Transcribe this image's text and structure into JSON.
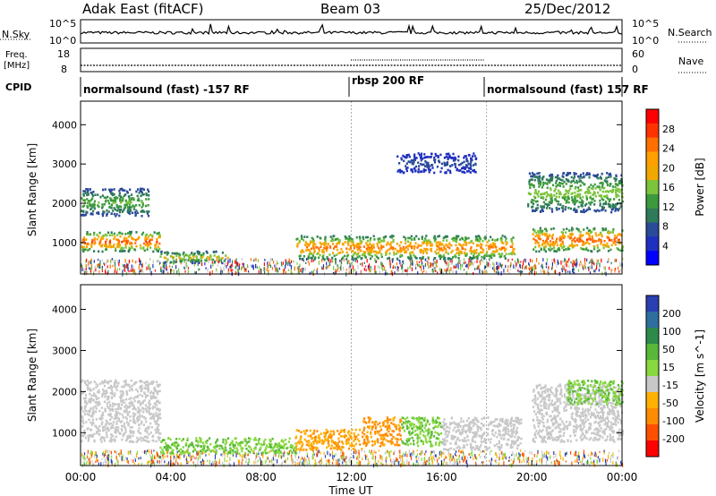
{
  "header": {
    "radar": "Adak East (fitACF)",
    "beam": "Beam 03",
    "date": "25/Dec/2012"
  },
  "strip_panels": {
    "nsky": {
      "left_label": "N.Sky",
      "right_label": "N.Search",
      "left_ticks": [
        "10^5",
        "10^0"
      ],
      "right_ticks": [
        "10^5",
        "10^0"
      ]
    },
    "freq": {
      "left_label_1": "Freq.",
      "left_label_2": "[MHz]",
      "right_label": "Nave",
      "left_ticks": [
        "18",
        "8"
      ],
      "right_ticks": [
        "60",
        "0"
      ]
    },
    "cpid": {
      "label": "CPID",
      "segments": [
        {
          "text": "normalsound (fast) -157 RF",
          "start_hour": 0,
          "end_hour": 12
        },
        {
          "text": "rbsp 200 RF",
          "start_hour": 12,
          "end_hour": 18
        },
        {
          "text": "normalsound (fast) 157 RF",
          "start_hour": 18,
          "end_hour": 24
        }
      ]
    }
  },
  "chart_data": [
    {
      "type": "heatmap",
      "panel": "power",
      "title": "",
      "xlabel": "",
      "ylabel": "Slant Range [km]",
      "xlim_hours": [
        0,
        24
      ],
      "ylim_km": [
        200,
        4600
      ],
      "yticks": [
        "1000",
        "2000",
        "3000",
        "4000"
      ],
      "colorbar": {
        "label": "Power [dB]",
        "tick_labels": [
          "28",
          "24",
          "20",
          "16",
          "12",
          "8",
          "4"
        ],
        "colors": [
          "#ff0000",
          "#ff3300",
          "#ff7000",
          "#ffa000",
          "#f0a800",
          "#7cc43c",
          "#3c9a3c",
          "#2f7a5a",
          "#2a4a9a",
          "#1f2fbf",
          "#0000ff"
        ]
      },
      "echo_bands": [
        {
          "start_hour": 0.0,
          "end_hour": 3.5,
          "range_low_km": 800,
          "range_high_km": 1300,
          "level_db": 26
        },
        {
          "start_hour": 3.5,
          "end_hour": 6.5,
          "range_low_km": 500,
          "range_high_km": 800,
          "level_db": 18
        },
        {
          "start_hour": 9.5,
          "end_hour": 19.2,
          "range_low_km": 600,
          "range_high_km": 1200,
          "level_db": 24
        },
        {
          "start_hour": 20.0,
          "end_hour": 24.0,
          "range_low_km": 800,
          "range_high_km": 1400,
          "level_db": 26
        },
        {
          "start_hour": 0.0,
          "end_hour": 3.0,
          "range_low_km": 1700,
          "range_high_km": 2400,
          "level_db": 14
        },
        {
          "start_hour": 19.8,
          "end_hour": 24.0,
          "range_low_km": 1800,
          "range_high_km": 2800,
          "level_db": 16
        },
        {
          "start_hour": 14.0,
          "end_hour": 17.5,
          "range_low_km": 2800,
          "range_high_km": 3300,
          "level_db": 6
        }
      ]
    },
    {
      "type": "heatmap",
      "panel": "velocity",
      "title": "",
      "xlabel": "Time UT",
      "ylabel": "Slant Range [km]",
      "xlim_hours": [
        0,
        24
      ],
      "ylim_km": [
        200,
        4600
      ],
      "yticks": [
        "1000",
        "2000",
        "3000",
        "4000"
      ],
      "xticks": [
        "00:00",
        "04:00",
        "08:00",
        "12:00",
        "16:00",
        "20:00",
        "00:00"
      ],
      "colorbar": {
        "label": "Velocity [m s^-1]",
        "tick_labels": [
          "200",
          "100",
          "50",
          "15",
          "-15",
          "-50",
          "-100",
          "-200"
        ],
        "colors": [
          "#2a3fb0",
          "#2f6fa0",
          "#2e8a4a",
          "#58b838",
          "#88d840",
          "#c8c8c8",
          "#ffb000",
          "#ff8c00",
          "#ff5000",
          "#ff0000"
        ]
      },
      "echo_bands": [
        {
          "start_hour": 0.0,
          "end_hour": 3.5,
          "range_low_km": 800,
          "range_high_km": 2300,
          "velocity_ms": 0
        },
        {
          "start_hour": 3.5,
          "end_hour": 9.5,
          "range_low_km": 500,
          "range_high_km": 900,
          "velocity_ms": 30
        },
        {
          "start_hour": 9.5,
          "end_hour": 12.5,
          "range_low_km": 600,
          "range_high_km": 1100,
          "velocity_ms": -30
        },
        {
          "start_hour": 12.5,
          "end_hour": 14.2,
          "range_low_km": 700,
          "range_high_km": 1400,
          "velocity_ms": -40
        },
        {
          "start_hour": 14.2,
          "end_hour": 16.0,
          "range_low_km": 700,
          "range_high_km": 1400,
          "velocity_ms": 30
        },
        {
          "start_hour": 16.0,
          "end_hour": 19.5,
          "range_low_km": 600,
          "range_high_km": 1400,
          "velocity_ms": 0
        },
        {
          "start_hour": 20.0,
          "end_hour": 24.0,
          "range_low_km": 800,
          "range_high_km": 2200,
          "velocity_ms": 0
        },
        {
          "start_hour": 21.5,
          "end_hour": 24.0,
          "range_low_km": 1700,
          "range_high_km": 2300,
          "velocity_ms": 30
        }
      ]
    }
  ]
}
